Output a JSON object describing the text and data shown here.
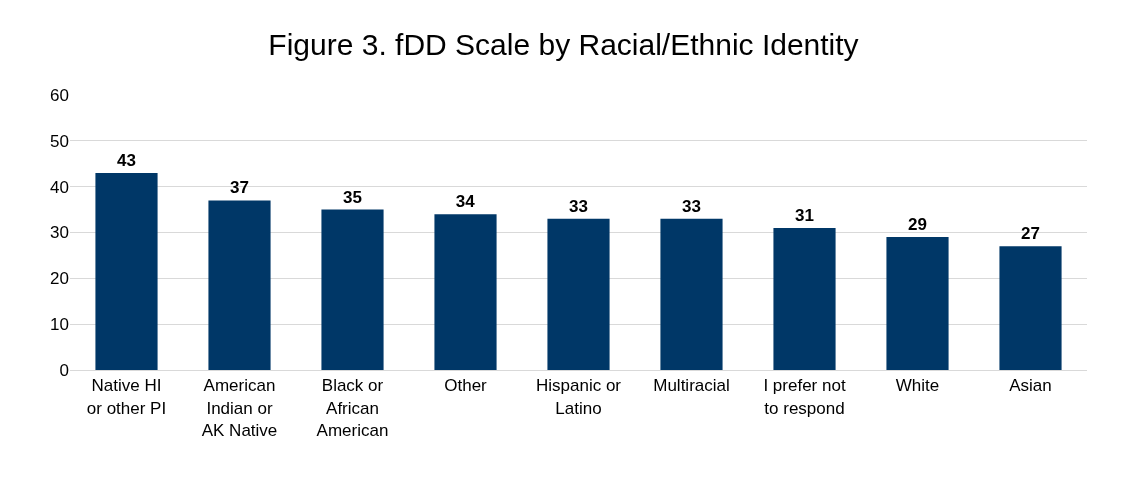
{
  "chart_data": {
    "type": "bar",
    "title": "Figure 3. fDD Scale by Racial/Ethnic Identity",
    "categories": [
      "Native HI\nor other PI",
      "American\nIndian or\nAK Native",
      "Black or\nAfrican\nAmerican",
      "Other",
      "Hispanic or\nLatino",
      "Multiracial",
      "I prefer not\nto respond",
      "White",
      "Asian"
    ],
    "values": [
      43,
      37,
      35,
      34,
      33,
      33,
      31,
      29,
      27
    ],
    "color": "#003767",
    "ylim": [
      0,
      60
    ],
    "yticks": [
      0,
      10,
      20,
      30,
      40,
      50,
      60
    ],
    "grid": "y",
    "data_labels": true,
    "legend": false
  }
}
